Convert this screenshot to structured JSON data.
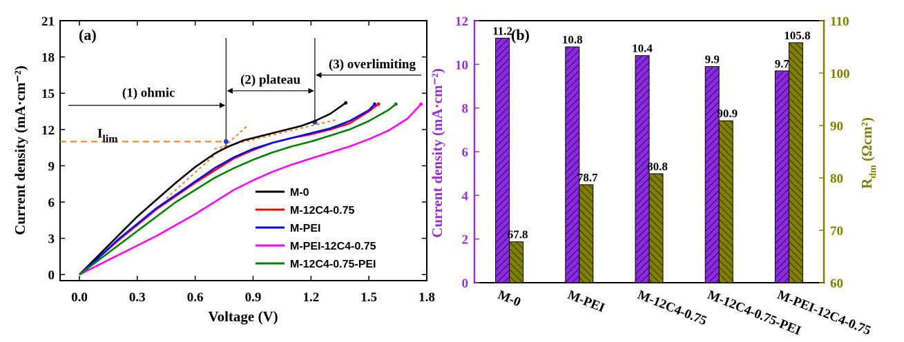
{
  "chart_data": [
    {
      "type": "line",
      "panel": "(a)",
      "xlabel": "Voltage (V)",
      "ylabel": "Current density (mA·cm⁻²)",
      "xlim": [
        -0.1,
        1.8
      ],
      "ylim": [
        -0.5,
        21
      ],
      "xticks": [
        "0.0",
        "0.3",
        "0.6",
        "0.9",
        "1.2",
        "1.5",
        "1.8"
      ],
      "xtick_values": [
        0,
        0.3,
        0.6,
        0.9,
        1.2,
        1.5,
        1.8
      ],
      "yticks": [
        "0",
        "3",
        "6",
        "9",
        "12",
        "15",
        "18",
        "21"
      ],
      "ytick_values": [
        0,
        3,
        6,
        9,
        12,
        15,
        18,
        21
      ],
      "series": [
        {
          "name": "M-0",
          "color": "#000000",
          "x": [
            0.0,
            0.1,
            0.2,
            0.3,
            0.4,
            0.5,
            0.6,
            0.7,
            0.76,
            0.85,
            0.95,
            1.05,
            1.15,
            1.22,
            1.3,
            1.38
          ],
          "y": [
            0,
            1.6,
            3.2,
            4.8,
            6.2,
            7.6,
            8.9,
            10.0,
            10.5,
            11.1,
            11.5,
            11.9,
            12.3,
            12.7,
            13.3,
            14.2
          ]
        },
        {
          "name": "M-12C4-0.75",
          "color": "#ff0000",
          "x": [
            0.0,
            0.1,
            0.2,
            0.3,
            0.4,
            0.5,
            0.6,
            0.7,
            0.8,
            0.9,
            1.0,
            1.1,
            1.2,
            1.3,
            1.4,
            1.5,
            1.55
          ],
          "y": [
            0,
            1.4,
            2.8,
            4.1,
            5.4,
            6.5,
            7.6,
            8.6,
            9.6,
            10.3,
            10.9,
            11.3,
            11.6,
            12.0,
            12.5,
            13.5,
            14.1
          ]
        },
        {
          "name": "M-PEI",
          "color": "#0000ff",
          "x": [
            0.0,
            0.1,
            0.2,
            0.3,
            0.4,
            0.5,
            0.6,
            0.7,
            0.8,
            0.9,
            1.0,
            1.1,
            1.2,
            1.3,
            1.4,
            1.5,
            1.53
          ],
          "y": [
            0,
            1.4,
            2.9,
            4.2,
            5.5,
            6.6,
            7.7,
            8.8,
            9.7,
            10.4,
            10.9,
            11.3,
            11.7,
            12.1,
            12.7,
            13.6,
            14.1
          ]
        },
        {
          "name": "M-PEI-12C4-0.75",
          "color": "#ff00ff",
          "x": [
            0.0,
            0.1,
            0.2,
            0.3,
            0.4,
            0.5,
            0.6,
            0.7,
            0.8,
            0.9,
            1.0,
            1.1,
            1.2,
            1.3,
            1.4,
            1.5,
            1.6,
            1.7,
            1.77
          ],
          "y": [
            0,
            0.8,
            1.6,
            2.4,
            3.2,
            4.1,
            5.0,
            6.0,
            7.0,
            7.8,
            8.5,
            9.1,
            9.6,
            10.1,
            10.6,
            11.2,
            11.9,
            12.9,
            14.1
          ]
        },
        {
          "name": "M-12C4-0.75-PEI",
          "color": "#008000",
          "x": [
            0.0,
            0.1,
            0.2,
            0.3,
            0.4,
            0.5,
            0.6,
            0.7,
            0.8,
            0.9,
            1.0,
            1.1,
            1.2,
            1.3,
            1.4,
            1.5,
            1.6,
            1.64
          ],
          "y": [
            0,
            1.2,
            2.4,
            3.6,
            4.8,
            6.0,
            7.0,
            8.0,
            8.8,
            9.5,
            10.1,
            10.6,
            11.0,
            11.5,
            12.0,
            12.7,
            13.6,
            14.1
          ]
        }
      ],
      "annotations": {
        "region1": "(1) ohmic",
        "region2": "(2) plateau",
        "region3": "(3) overlimiting",
        "im_label": "I",
        "im_sub": "lim",
        "im_value": 11.0,
        "boundary1_v": 0.76,
        "boundary2_v": 1.22,
        "arrow_y": 14.0
      },
      "legend_position": "bottom-right"
    },
    {
      "type": "bar",
      "panel": "(b)",
      "categories": [
        "M-0",
        "M-PEI",
        "M-12C4-0.75",
        "M-12C4-0.75-PEI",
        "M-PEI-12C4-0.75"
      ],
      "series": [
        {
          "name": "Current density",
          "axis": "left",
          "color": "#8a2be2",
          "values": [
            11.2,
            10.8,
            10.4,
            9.9,
            9.7
          ],
          "labels": [
            "11.2",
            "10.8",
            "10.4",
            "9.9",
            "9.7"
          ]
        },
        {
          "name": "Rdm",
          "axis": "right",
          "color": "#808000",
          "values": [
            67.8,
            78.7,
            80.8,
            90.9,
            105.8
          ],
          "labels": [
            "67.8",
            "78.7",
            "80.8",
            "90.9",
            "105.8"
          ]
        }
      ],
      "ylabel_left": "Current density (mA·cm⁻²)",
      "ylabel_right_main": "R",
      "ylabel_right_sub": "dm",
      "ylabel_right_unit": " (Ωcm²)",
      "ylim_left": [
        0,
        12
      ],
      "ylim_right": [
        60,
        110
      ],
      "yticks_left": [
        "0",
        "2",
        "4",
        "6",
        "8",
        "10",
        "12"
      ],
      "yticks_left_values": [
        0,
        2,
        4,
        6,
        8,
        10,
        12
      ],
      "yticks_right": [
        "60",
        "70",
        "80",
        "90",
        "100",
        "110"
      ],
      "yticks_right_values": [
        60,
        70,
        80,
        90,
        100,
        110
      ],
      "left_axis_color": "#9932cc",
      "right_axis_color": "#808000"
    }
  ]
}
